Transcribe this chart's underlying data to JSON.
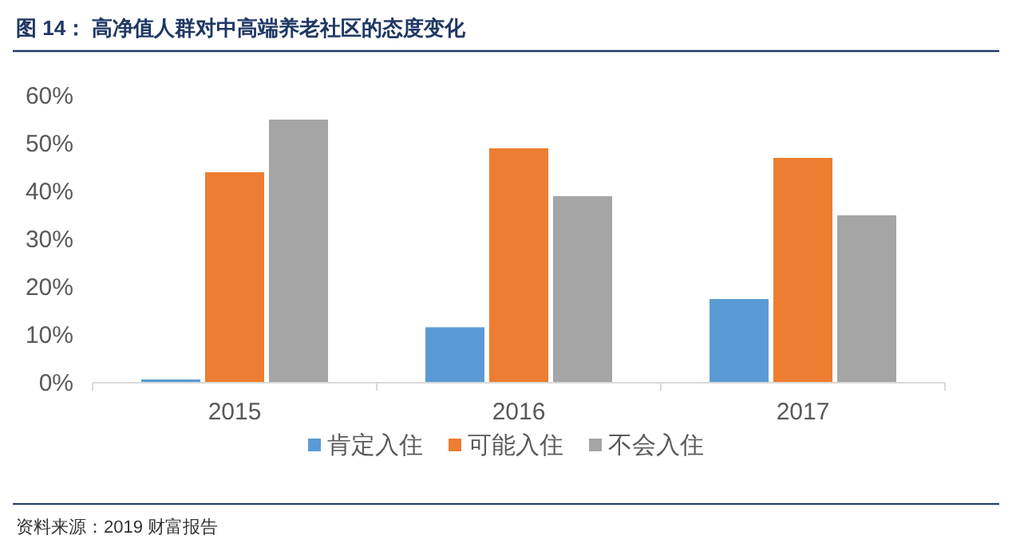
{
  "chart_data": {
    "type": "bar",
    "title": "图 14： 高净值人群对中高端养老社区的态度变化",
    "categories": [
      "2015",
      "2016",
      "2017"
    ],
    "series": [
      {
        "name": "肯定入住",
        "color": "#5b9bd5",
        "values": [
          0.7,
          11.6,
          17.5
        ]
      },
      {
        "name": "可能入住",
        "color": "#ed7d31",
        "values": [
          44,
          49,
          47
        ]
      },
      {
        "name": "不会入住",
        "color": "#a5a5a5",
        "values": [
          55,
          39,
          35
        ]
      }
    ],
    "ylim": [
      0,
      60
    ],
    "yticks": [
      {
        "value": 0,
        "label": "0%"
      },
      {
        "value": 10,
        "label": "10%"
      },
      {
        "value": 20,
        "label": "20%"
      },
      {
        "value": 30,
        "label": "30%"
      },
      {
        "value": 40,
        "label": "40%"
      },
      {
        "value": 50,
        "label": "50%"
      },
      {
        "value": 60,
        "label": "60%"
      }
    ],
    "legend": "bottom",
    "annotations": [
      "资料来源：2019 财富报告"
    ]
  }
}
